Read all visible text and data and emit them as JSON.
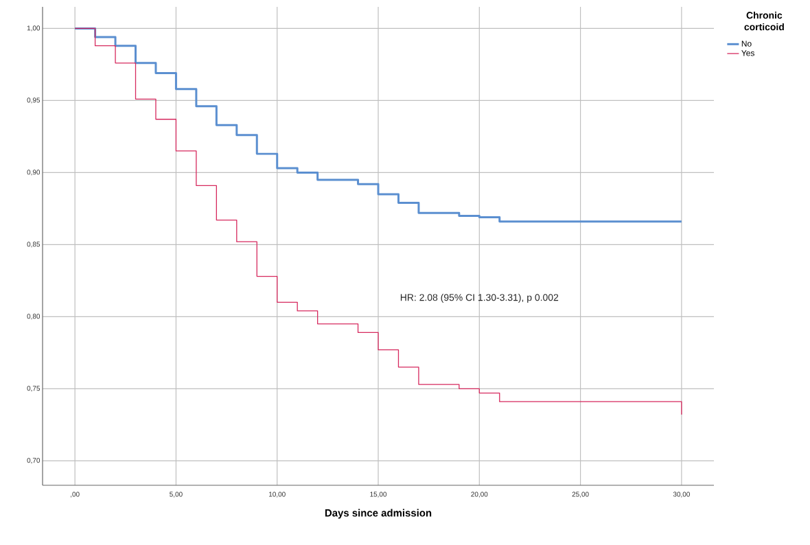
{
  "chart_data": {
    "type": "step",
    "xlabel": "Days since admission",
    "legend_title": "Chronic corticoid",
    "annotations": [
      "HR: 2.08 (95% CI 1.30-3.31), p 0.002"
    ],
    "series": [
      {
        "name": "No",
        "color": "#5b8fd0",
        "x": [
          0,
          1,
          2,
          3,
          4,
          5,
          6,
          7,
          8,
          9,
          10,
          11,
          12,
          14,
          15,
          16,
          17,
          19,
          20,
          21,
          30
        ],
        "values": [
          1.0,
          0.994,
          0.988,
          0.976,
          0.969,
          0.958,
          0.946,
          0.933,
          0.926,
          0.913,
          0.903,
          0.9,
          0.895,
          0.892,
          0.885,
          0.879,
          0.872,
          0.87,
          0.869,
          0.866,
          0.866
        ]
      },
      {
        "name": "Yes",
        "color": "#d6295e",
        "x": [
          0,
          1,
          2,
          3,
          4,
          5,
          6,
          7,
          8,
          9,
          10,
          11,
          12,
          14,
          15,
          16,
          17,
          19,
          20,
          21,
          30
        ],
        "values": [
          1.0,
          0.988,
          0.976,
          0.951,
          0.937,
          0.915,
          0.891,
          0.867,
          0.852,
          0.828,
          0.81,
          0.804,
          0.795,
          0.789,
          0.777,
          0.765,
          0.753,
          0.75,
          0.747,
          0.741,
          0.732
        ]
      }
    ],
    "xlim": [
      -1.6,
      31.6
    ],
    "ylim": [
      0.683,
      1.015
    ],
    "xticks": [
      {
        "value": 0,
        "label": ",00"
      },
      {
        "value": 5,
        "label": "5,00"
      },
      {
        "value": 10,
        "label": "10,00"
      },
      {
        "value": 15,
        "label": "15,00"
      },
      {
        "value": 20,
        "label": "20,00"
      },
      {
        "value": 25,
        "label": "25,00"
      },
      {
        "value": 30,
        "label": "30,00"
      }
    ],
    "yticks": [
      {
        "value": 0.7,
        "label": "0,70"
      },
      {
        "value": 0.75,
        "label": "0,75"
      },
      {
        "value": 0.8,
        "label": "0,80"
      },
      {
        "value": 0.85,
        "label": "0,85"
      },
      {
        "value": 0.9,
        "label": "0,90"
      },
      {
        "value": 0.95,
        "label": "0,95"
      },
      {
        "value": 1.0,
        "label": "1,00"
      }
    ],
    "grid": true,
    "legend": "top right",
    "line_style": "solid",
    "marker": "none"
  }
}
